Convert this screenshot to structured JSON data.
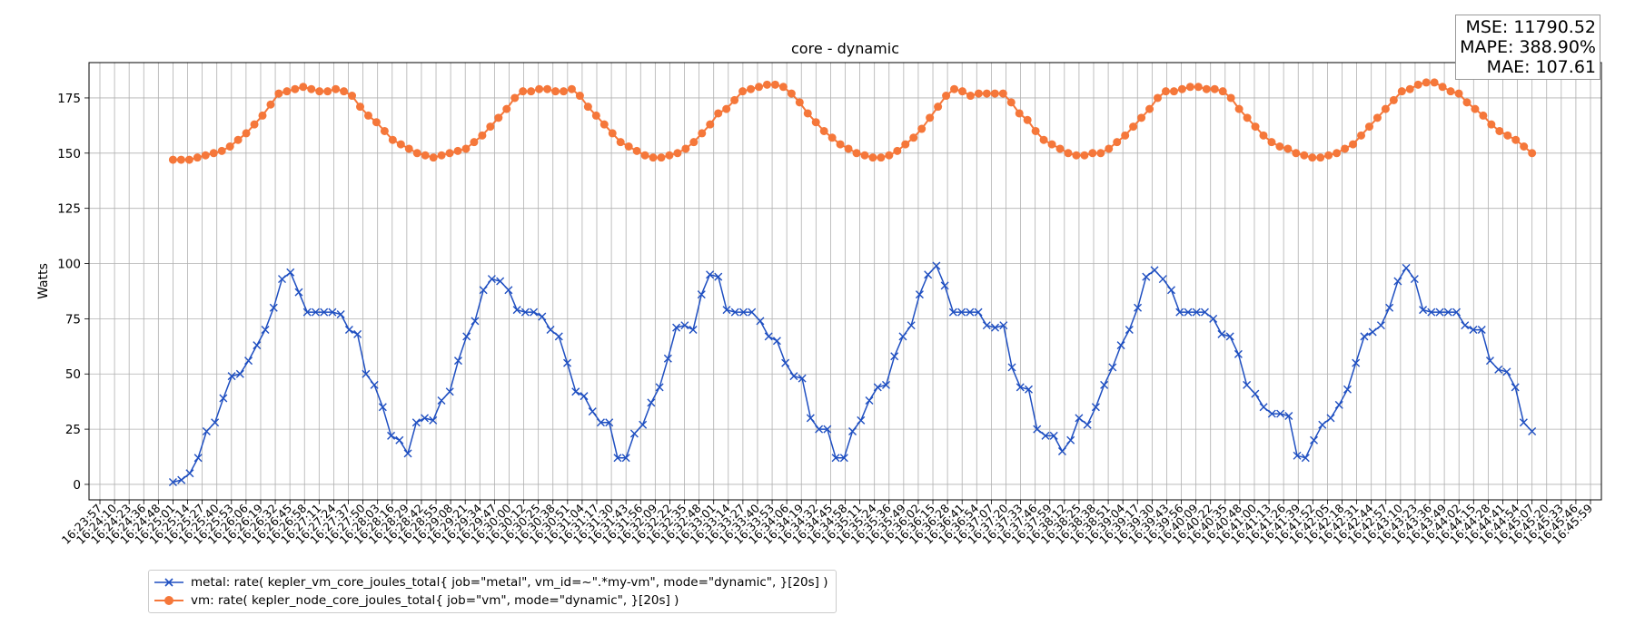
{
  "chart_data": {
    "type": "line",
    "title": "core - dynamic",
    "ylabel": "Watts",
    "xlabel": "",
    "ylim": [
      -7,
      191
    ],
    "yticks": [
      0,
      25,
      50,
      75,
      100,
      125,
      150,
      175
    ],
    "grid": true,
    "legend_position": "bottom-left",
    "metrics": [
      "MSE: 11790.52",
      "MAPE: 388.90%",
      "MAE: 107.61"
    ],
    "x_tick_labels": [
      "16:23:57",
      "16:24:10",
      "16:24:23",
      "16:24:36",
      "16:24:48",
      "16:25:01",
      "16:25:14",
      "16:25:27",
      "16:25:40",
      "16:25:53",
      "16:26:06",
      "16:26:19",
      "16:26:32",
      "16:26:45",
      "16:26:58",
      "16:27:11",
      "16:27:24",
      "16:27:37",
      "16:27:50",
      "16:28:03",
      "16:28:16",
      "16:28:29",
      "16:28:42",
      "16:28:55",
      "16:29:08",
      "16:29:21",
      "16:29:34",
      "16:29:47",
      "16:30:00",
      "16:30:12",
      "16:30:25",
      "16:30:38",
      "16:30:51",
      "16:31:04",
      "16:31:17",
      "16:31:30",
      "16:31:43",
      "16:31:56",
      "16:32:09",
      "16:32:22",
      "16:32:35",
      "16:32:48",
      "16:33:01",
      "16:33:14",
      "16:33:27",
      "16:33:40",
      "16:33:53",
      "16:34:06",
      "16:34:19",
      "16:34:32",
      "16:34:45",
      "16:34:58",
      "16:35:11",
      "16:35:24",
      "16:35:36",
      "16:35:49",
      "16:36:02",
      "16:36:15",
      "16:36:28",
      "16:36:41",
      "16:36:54",
      "16:37:07",
      "16:37:20",
      "16:37:33",
      "16:37:46",
      "16:37:59",
      "16:38:12",
      "16:38:25",
      "16:38:38",
      "16:38:51",
      "16:39:04",
      "16:39:17",
      "16:39:30",
      "16:39:43",
      "16:39:56",
      "16:40:09",
      "16:40:22",
      "16:40:35",
      "16:40:48",
      "16:41:00",
      "16:41:13",
      "16:41:26",
      "16:41:39",
      "16:41:52",
      "16:42:05",
      "16:42:18",
      "16:42:31",
      "16:42:44",
      "16:42:57",
      "16:43:10",
      "16:43:23",
      "16:43:36",
      "16:43:49",
      "16:44:02",
      "16:44:15",
      "16:44:28",
      "16:44:41",
      "16:44:54",
      "16:45:07",
      "16:45:20",
      "16:45:33",
      "16:45:46",
      "16:45:59"
    ],
    "x_data_start_index": 5,
    "x_data_end_index": 98,
    "series": [
      {
        "name": "metal: rate( kepler_vm_core_joules_total{ job=\"metal\", vm_id=~\".*my-vm\", mode=\"dynamic\", }[20s] )",
        "color": "#1f4fc1",
        "marker": "x",
        "values": [
          1,
          2,
          5,
          12,
          24,
          28,
          39,
          49,
          50,
          56,
          63,
          70,
          80,
          93,
          96,
          87,
          78,
          78,
          78,
          78,
          77,
          70,
          68,
          50,
          45,
          35,
          22,
          20,
          14,
          28,
          30,
          29,
          38,
          42,
          56,
          67,
          74,
          88,
          93,
          92,
          88,
          79,
          78,
          78,
          76,
          70,
          67,
          55,
          42,
          40,
          33,
          28,
          28,
          12,
          12,
          23,
          27,
          37,
          44,
          57,
          71,
          72,
          70,
          86,
          95,
          94,
          79,
          78,
          78,
          78,
          74,
          67,
          65,
          55,
          49,
          48,
          30,
          25,
          25,
          12,
          12,
          24,
          29,
          38,
          44,
          45,
          58,
          67,
          72,
          86,
          95,
          99,
          90,
          78,
          78,
          78,
          78,
          72,
          71,
          72,
          53,
          44,
          43,
          25,
          22,
          22,
          15,
          20,
          30,
          27,
          35,
          45,
          53,
          63,
          70,
          80,
          94,
          97,
          93,
          88,
          78,
          78,
          78,
          78,
          75,
          68,
          67,
          59,
          45,
          41,
          35,
          32,
          32,
          31,
          13,
          12,
          20,
          27,
          30,
          36,
          43,
          55,
          67,
          69,
          72,
          80,
          92,
          98,
          93,
          79,
          78,
          78,
          78,
          78,
          72,
          70,
          70,
          56,
          52,
          51,
          44,
          28,
          24
        ]
      },
      {
        "name": "vm: rate( kepler_node_core_joules_total{ job=\"vm\", mode=\"dynamic\", }[20s] )",
        "color": "#f5773a",
        "marker": "o",
        "values": [
          147,
          147,
          147,
          148,
          149,
          150,
          151,
          153,
          156,
          159,
          163,
          167,
          172,
          177,
          178,
          179,
          180,
          179,
          178,
          178,
          179,
          178,
          176,
          171,
          167,
          164,
          160,
          156,
          154,
          152,
          150,
          149,
          148,
          149,
          150,
          151,
          152,
          155,
          158,
          162,
          166,
          170,
          175,
          178,
          178,
          179,
          179,
          178,
          178,
          179,
          176,
          171,
          167,
          163,
          159,
          155,
          153,
          151,
          149,
          148,
          148,
          149,
          150,
          152,
          155,
          159,
          163,
          168,
          170,
          174,
          178,
          179,
          180,
          181,
          181,
          180,
          177,
          173,
          168,
          164,
          160,
          157,
          154,
          152,
          150,
          149,
          148,
          148,
          149,
          151,
          154,
          157,
          161,
          166,
          171,
          176,
          179,
          178,
          176,
          177,
          177,
          177,
          177,
          173,
          168,
          165,
          160,
          156,
          154,
          152,
          150,
          149,
          149,
          150,
          150,
          152,
          155,
          158,
          162,
          166,
          170,
          175,
          178,
          178,
          179,
          180,
          180,
          179,
          179,
          178,
          175,
          170,
          166,
          162,
          158,
          155,
          153,
          152,
          150,
          149,
          148,
          148,
          149,
          150,
          152,
          154,
          158,
          162,
          166,
          170,
          174,
          178,
          179,
          181,
          182,
          182,
          180,
          178,
          177,
          173,
          170,
          167,
          163,
          160,
          158,
          156,
          153,
          150
        ]
      }
    ]
  }
}
